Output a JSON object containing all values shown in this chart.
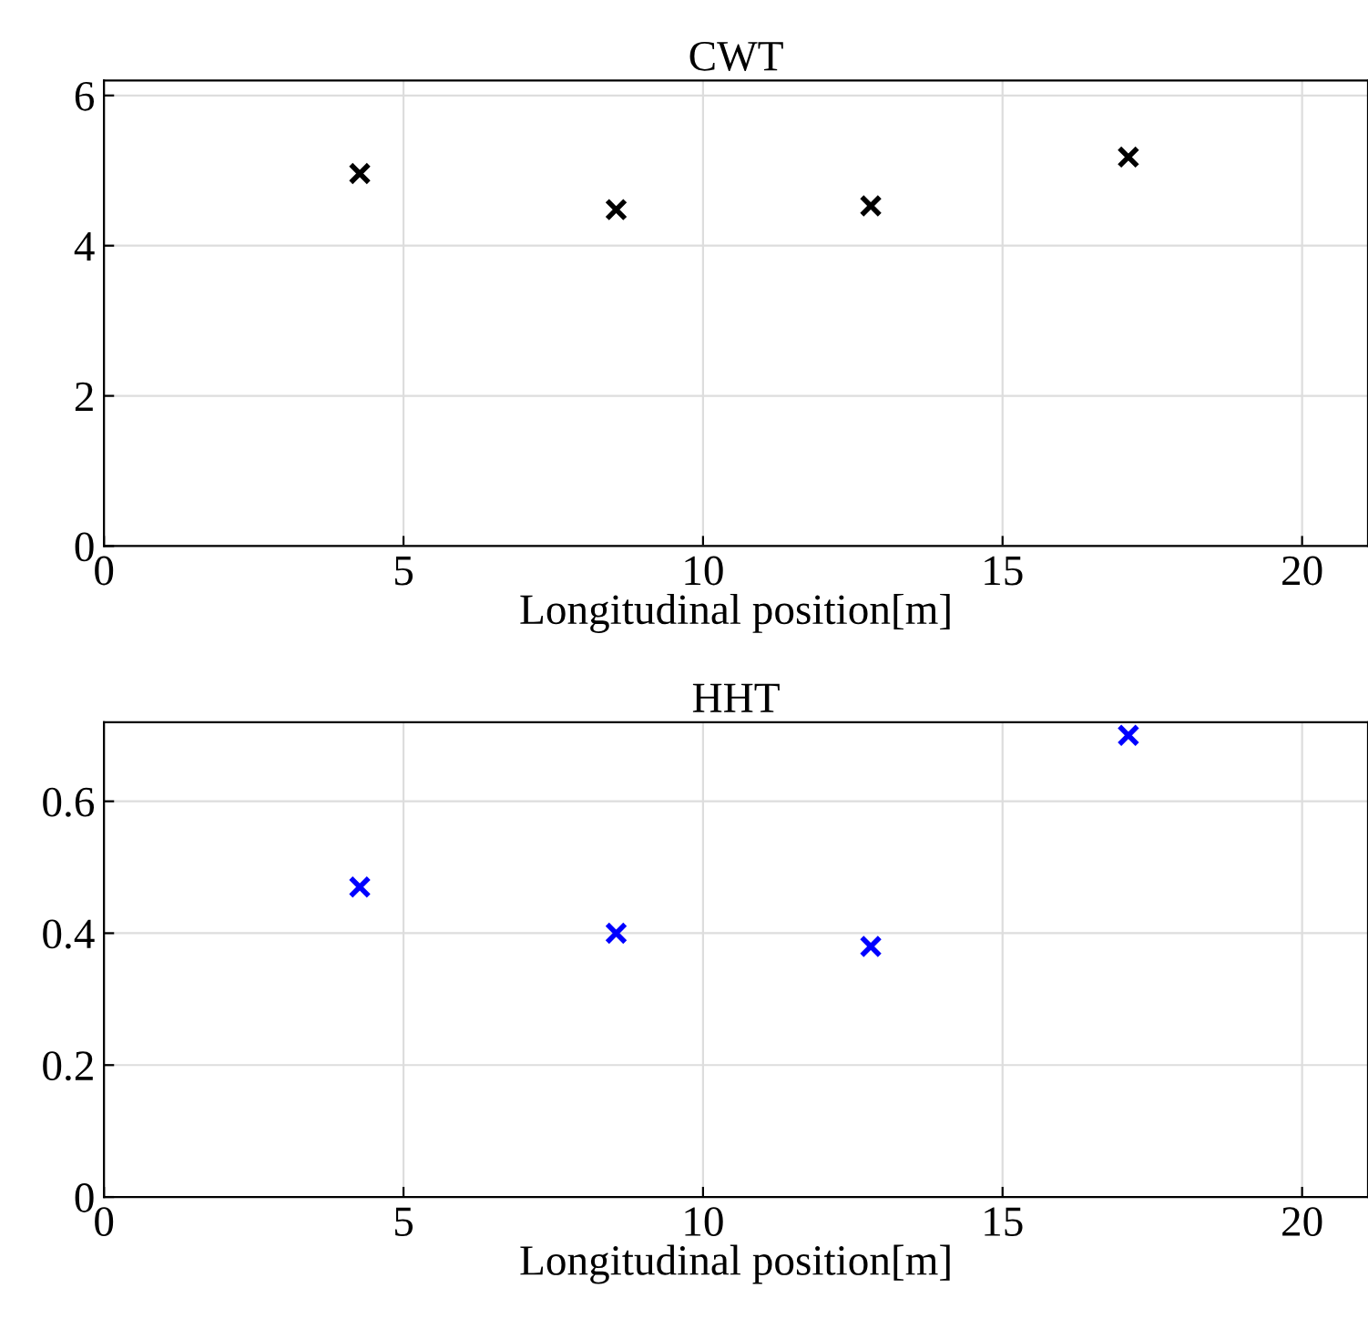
{
  "chart_data": [
    {
      "type": "scatter",
      "title": "CWT",
      "xlabel": "Longitudinal position[m]",
      "x": [
        4.27,
        8.55,
        12.8,
        17.1
      ],
      "series": [
        {
          "color": "#000000",
          "values": [
            4.96,
            4.48,
            4.53,
            5.18
          ]
        }
      ],
      "xlim": [
        0,
        21.1
      ],
      "xticks": [
        0,
        5,
        10,
        15,
        20
      ],
      "ylim": [
        0,
        6.2
      ],
      "yticks": [
        0,
        2,
        4,
        6
      ],
      "grid": true,
      "marker": "cross"
    },
    {
      "type": "scatter",
      "title": "HHT",
      "xlabel": "Longitudinal position[m]",
      "x": [
        4.27,
        8.55,
        12.8,
        17.1
      ],
      "series": [
        {
          "color": "#0000ff",
          "values": [
            0.47,
            0.4,
            0.38,
            0.7
          ]
        }
      ],
      "xlim": [
        0,
        21.1
      ],
      "xticks": [
        0,
        5,
        10,
        15,
        20
      ],
      "ylim": [
        0,
        0.72
      ],
      "yticks": [
        0,
        0.2,
        0.4,
        0.6
      ],
      "grid": true,
      "marker": "cross"
    }
  ]
}
